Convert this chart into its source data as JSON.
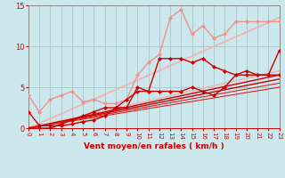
{
  "xlabel": "Vent moyen/en rafales ( km/h )",
  "xlim": [
    0,
    23
  ],
  "ylim": [
    0,
    15
  ],
  "yticks": [
    0,
    5,
    10,
    15
  ],
  "xticks": [
    0,
    1,
    2,
    3,
    4,
    5,
    6,
    7,
    8,
    9,
    10,
    11,
    12,
    13,
    14,
    15,
    16,
    17,
    18,
    19,
    20,
    21,
    22,
    23
  ],
  "bg_color": "#cce8ec",
  "grid_color": "#aacccc",
  "series": [
    {
      "x": [
        0,
        23
      ],
      "y": [
        0,
        13.5
      ],
      "color": "#f4b0b0",
      "lw": 1.2,
      "marker": null,
      "zorder": 2
    },
    {
      "x": [
        0,
        23
      ],
      "y": [
        0,
        7.0
      ],
      "color": "#f4b0b0",
      "lw": 1.0,
      "marker": null,
      "zorder": 2
    },
    {
      "x": [
        0,
        23
      ],
      "y": [
        0,
        6.5
      ],
      "color": "#cc0000",
      "lw": 1.0,
      "marker": null,
      "zorder": 2
    },
    {
      "x": [
        0,
        23
      ],
      "y": [
        0,
        6.0
      ],
      "color": "#cc0000",
      "lw": 1.0,
      "marker": null,
      "zorder": 2
    },
    {
      "x": [
        0,
        23
      ],
      "y": [
        0,
        5.5
      ],
      "color": "#dd2222",
      "lw": 0.8,
      "marker": null,
      "zorder": 2
    },
    {
      "x": [
        0,
        23
      ],
      "y": [
        0,
        5.0
      ],
      "color": "#dd2222",
      "lw": 0.8,
      "marker": null,
      "zorder": 2
    },
    {
      "x": [
        0,
        1,
        2,
        3,
        4,
        5,
        6,
        7,
        8,
        9,
        10,
        11,
        12,
        13,
        14,
        15,
        16,
        17,
        18,
        19,
        20,
        21,
        22,
        23
      ],
      "y": [
        4.0,
        2.0,
        3.5,
        4.0,
        4.5,
        3.2,
        3.5,
        3.0,
        3.0,
        3.5,
        6.5,
        8.0,
        9.0,
        13.5,
        14.5,
        11.5,
        12.5,
        11.0,
        11.5,
        13.0,
        13.0,
        13.0,
        13.0,
        13.0
      ],
      "color": "#f09090",
      "lw": 1.0,
      "marker": "D",
      "markersize": 2.0,
      "zorder": 3
    },
    {
      "x": [
        0,
        1,
        2,
        3,
        4,
        5,
        6,
        7,
        8,
        9,
        10,
        11,
        12,
        13,
        14,
        15,
        16,
        17,
        18,
        19,
        20,
        21,
        22,
        23
      ],
      "y": [
        0,
        0,
        0,
        0.5,
        1.0,
        1.5,
        2.0,
        2.5,
        2.5,
        2.5,
        5.0,
        4.5,
        8.5,
        8.5,
        8.5,
        8.0,
        8.5,
        7.5,
        7.0,
        6.5,
        6.5,
        6.5,
        6.5,
        6.5
      ],
      "color": "#cc0000",
      "lw": 1.0,
      "marker": "D",
      "markersize": 2.0,
      "zorder": 4
    },
    {
      "x": [
        0,
        1,
        2,
        3,
        4,
        5,
        6,
        7,
        8,
        9,
        10,
        11,
        12,
        13,
        14,
        15,
        16,
        17,
        18,
        19,
        20,
        21,
        22,
        23
      ],
      "y": [
        2.0,
        0.3,
        0.3,
        0.3,
        0.5,
        0.8,
        1.0,
        1.5,
        2.5,
        3.5,
        4.5,
        4.5,
        4.5,
        4.5,
        4.5,
        5.0,
        4.5,
        4.0,
        5.0,
        6.5,
        7.0,
        6.5,
        6.5,
        9.5
      ],
      "color": "#cc0000",
      "lw": 1.0,
      "marker": "D",
      "markersize": 2.0,
      "zorder": 4
    }
  ],
  "arrow_color": "#cc0000",
  "xlabel_color": "#cc0000",
  "xlabel_fontsize": 6.5,
  "tick_color": "#cc0000",
  "tick_fontsize": 5.0,
  "ytick_fontsize": 6.0
}
